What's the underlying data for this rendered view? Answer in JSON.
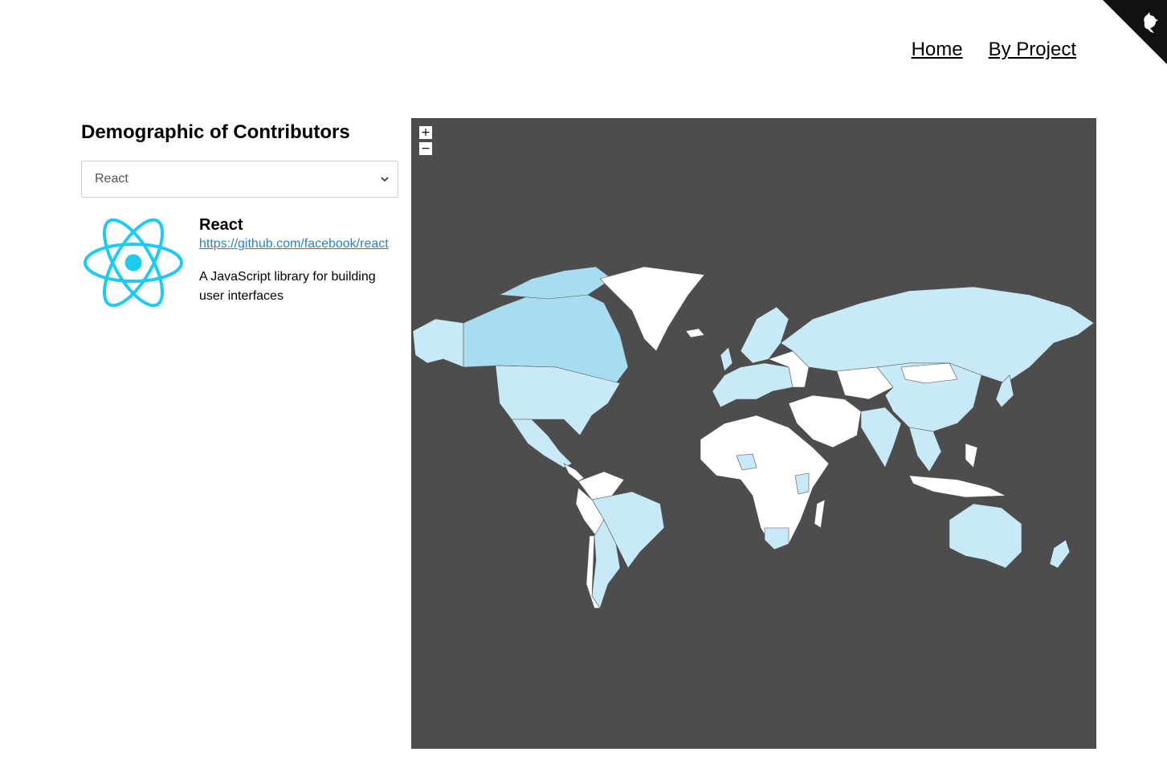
{
  "nav": {
    "home": "Home",
    "by_project": "By Project"
  },
  "sidebar": {
    "title": "Demographic of Contributors",
    "select": {
      "value": "React"
    },
    "project": {
      "name": "React",
      "url": "https://github.com/facebook/react",
      "description": "A JavaScript library for building user interfaces"
    }
  },
  "map": {
    "zoom_in": "+",
    "zoom_out": "−",
    "colors": {
      "background": "#4d4d4d",
      "no_data": "#ffffff",
      "light": "#c8e9f8",
      "medium": "#a8dcf0",
      "dark": "#9dd3ee"
    }
  },
  "icons": {
    "corner": "github-icon",
    "logo": "react-logo",
    "chevron": "chevron-down-icon"
  },
  "colors": {
    "link": "#2b82c9",
    "react": "#1dcbf2"
  }
}
